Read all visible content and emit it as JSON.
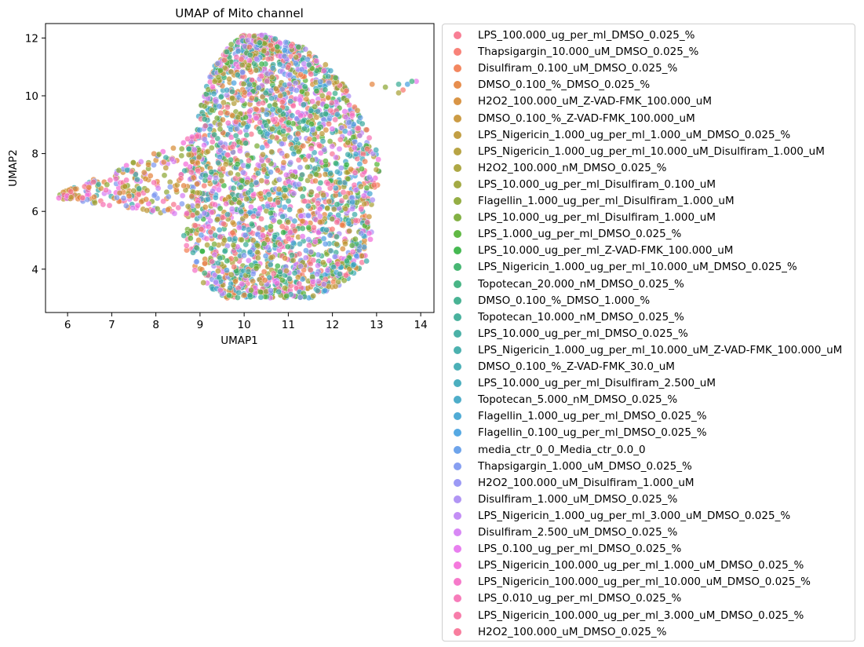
{
  "chart_data": {
    "type": "scatter",
    "title": "UMAP of Mito channel",
    "xlabel": "UMAP1",
    "ylabel": "UMAP2",
    "xlim": [
      5.5,
      14.3
    ],
    "ylim": [
      2.5,
      12.5
    ],
    "xticks": [
      6,
      7,
      8,
      9,
      10,
      11,
      12,
      13,
      14
    ],
    "yticks": [
      4,
      6,
      8,
      10,
      12
    ],
    "grid": false,
    "legend_position": "outside-right",
    "marker_alpha": 0.7,
    "point_distribution": {
      "main_cluster": {
        "x_range": [
          8.6,
          13.1
        ],
        "y_range": [
          3.0,
          12.1
        ],
        "center": [
          10.9,
          7.6
        ]
      },
      "left_arm": {
        "x_range": [
          5.8,
          9.0
        ],
        "y_range": [
          5.8,
          8.7
        ]
      },
      "right_outliers": [
        [
          12.9,
          10.4
        ],
        [
          13.2,
          10.3
        ],
        [
          13.5,
          10.4
        ],
        [
          13.7,
          10.4
        ],
        [
          13.9,
          10.5
        ],
        [
          13.6,
          10.2
        ],
        [
          13.5,
          10.1
        ],
        [
          13.8,
          10.5
        ]
      ]
    },
    "series": [
      {
        "name": "LPS_100.000_ug_per_ml_DMSO_0.025_%",
        "color": "#f77189"
      },
      {
        "name": "Thapsigargin_10.000_uM_DMSO_0.025_%",
        "color": "#f7746a"
      },
      {
        "name": "Disulfiram_0.100_uM_DMSO_0.025_%",
        "color": "#f27a4f"
      },
      {
        "name": "DMSO_0.100_%_DMSO_0.025_%",
        "color": "#e4823b"
      },
      {
        "name": "H2O2_100.000_uM_Z-VAD-FMK_100.000_uM",
        "color": "#d58a32"
      },
      {
        "name": "DMSO_0.100_%_Z-VAD-FMK_100.000_uM",
        "color": "#c79131"
      },
      {
        "name": "LPS_Nigericin_1.000_ug_per_ml_1.000_uM_DMSO_0.025_%",
        "color": "#bb9531"
      },
      {
        "name": "LPS_Nigericin_1.000_ug_per_ml_10.000_uM_Disulfiram_1.000_uM",
        "color": "#b09a31"
      },
      {
        "name": "H2O2_100.000_nM_DMSO_0.025_%",
        "color": "#a59e31"
      },
      {
        "name": "LPS_10.000_ug_per_ml_Disulfiram_0.100_uM",
        "color": "#99a131"
      },
      {
        "name": "Flagellin_1.000_ug_per_ml_Disulfiram_1.000_uM",
        "color": "#8aa531"
      },
      {
        "name": "LPS_10.000_ug_per_ml_Disulfiram_1.000_uM",
        "color": "#75a931"
      },
      {
        "name": "LPS_1.000_ug_per_ml_DMSO_0.025_%",
        "color": "#50b131"
      },
      {
        "name": "LPS_10.000_ug_per_ml_Z-VAD-FMK_100.000_uM",
        "color": "#32b13f"
      },
      {
        "name": "LPS_Nigericin_1.000_ug_per_ml_10.000_uM_DMSO_0.025_%",
        "color": "#34af65"
      },
      {
        "name": "Topotecan_20.000_nM_DMSO_0.025_%",
        "color": "#35ad79"
      },
      {
        "name": "DMSO_0.100_%_DMSO_1.000_%",
        "color": "#35ab88"
      },
      {
        "name": "Topotecan_10.000_nM_DMSO_0.025_%",
        "color": "#36aa93"
      },
      {
        "name": "LPS_10.000_ug_per_ml_DMSO_0.025_%",
        "color": "#37a99d"
      },
      {
        "name": "LPS_Nigericin_1.000_ug_per_ml_10.000_uM_Z-VAD-FMK_100.000_uM",
        "color": "#38a8a6"
      },
      {
        "name": "DMSO_0.100_%_Z-VAD-FMK_30.0_uM",
        "color": "#38a7af"
      },
      {
        "name": "LPS_10.000_ug_per_ml_Disulfiram_2.500_uM",
        "color": "#39a6b8"
      },
      {
        "name": "Topotecan_5.000_nM_DMSO_0.025_%",
        "color": "#3ba4c3"
      },
      {
        "name": "Flagellin_1.000_ug_per_ml_DMSO_0.025_%",
        "color": "#3da2d0"
      },
      {
        "name": "Flagellin_0.100_ug_per_ml_DMSO_0.025_%",
        "color": "#44a0e0"
      },
      {
        "name": "media_ctr_0_0_Media_ctr_0.0_0",
        "color": "#5e9ae9"
      },
      {
        "name": "Thapsigargin_1.000_uM_DMSO_0.025_%",
        "color": "#7a95f0"
      },
      {
        "name": "H2O2_100.000_uM_Disulfiram_1.000_uM",
        "color": "#918ff4"
      },
      {
        "name": "Disulfiram_1.000_uM_DMSO_0.025_%",
        "color": "#a889f3"
      },
      {
        "name": "LPS_Nigericin_1.000_ug_per_ml_3.000_uM_DMSO_0.025_%",
        "color": "#bd82f4"
      },
      {
        "name": "Disulfiram_2.500_uM_DMSO_0.025_%",
        "color": "#d47bf4"
      },
      {
        "name": "LPS_0.100_ug_per_ml_DMSO_0.025_%",
        "color": "#e571ed"
      },
      {
        "name": "LPS_Nigericin_100.000_ug_per_ml_1.000_uM_DMSO_0.025_%",
        "color": "#f46ad9"
      },
      {
        "name": "LPS_Nigericin_100.000_ug_per_ml_10.000_uM_DMSO_0.025_%",
        "color": "#f56cc4"
      },
      {
        "name": "LPS_0.010_ug_per_ml_DMSO_0.025_%",
        "color": "#f66eb2"
      },
      {
        "name": "LPS_Nigericin_100.000_ug_per_ml_3.000_uM_DMSO_0.025_%",
        "color": "#f66fa1"
      },
      {
        "name": "H2O2_100.000_uM_DMSO_0.025_%",
        "color": "#f77093"
      }
    ]
  }
}
